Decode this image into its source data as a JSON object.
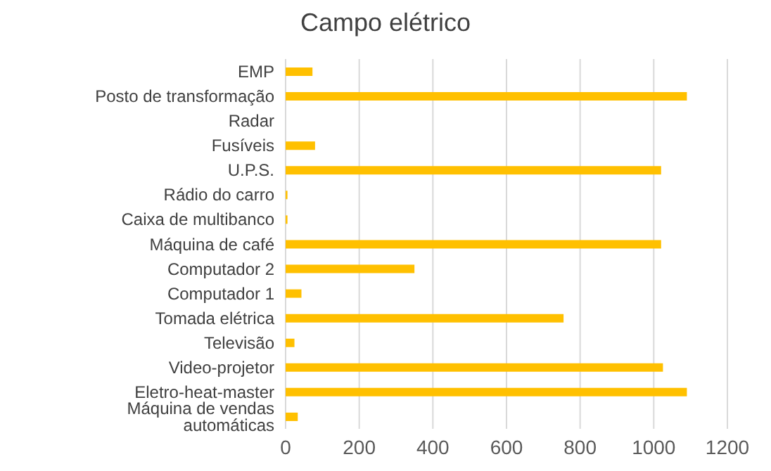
{
  "chart_data": {
    "type": "bar",
    "orientation": "horizontal",
    "title": "Campo elétrico",
    "categories": [
      "EMP",
      "Posto de transformação",
      "Radar",
      "Fusíveis",
      "U.P.S.",
      "Rádio do carro",
      "Caixa de multibanco",
      "Máquina de café",
      "Computador 2",
      "Computador 1",
      "Tomada elétrica",
      "Televisão",
      "Video-projetor",
      "Eletro-heat-master",
      "Máquina de vendas automáticas"
    ],
    "values": [
      73,
      1090,
      0,
      80,
      1020,
      5,
      5,
      1020,
      350,
      43,
      755,
      24,
      1025,
      1090,
      33
    ],
    "color": "#ffc000",
    "xlim": [
      0,
      1200
    ],
    "xticks": [
      0,
      200,
      400,
      600,
      800,
      1000,
      1200
    ],
    "grid": "x",
    "legend": false
  }
}
